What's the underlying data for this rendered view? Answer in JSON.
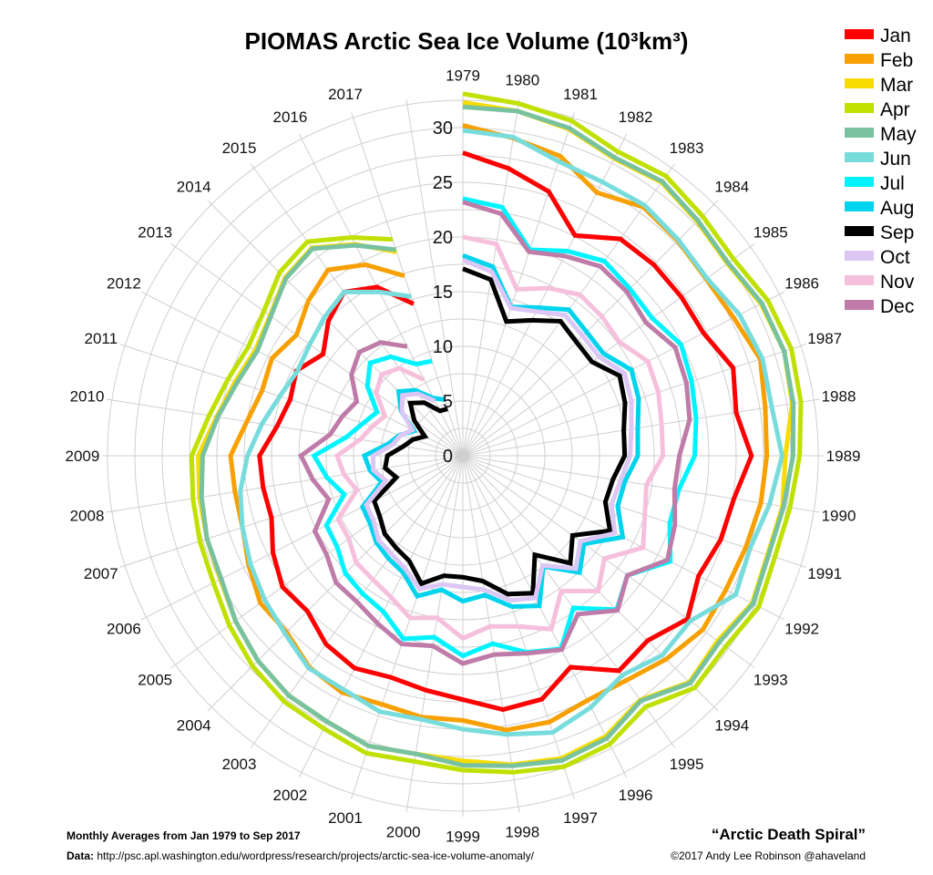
{
  "chart_data": {
    "type": "line",
    "subtype": "polar-spiral",
    "title": "PIOMAS Arctic Sea Ice Volume (10³km³)",
    "years": [
      "1979",
      "1980",
      "1981",
      "1982",
      "1983",
      "1984",
      "1985",
      "1986",
      "1987",
      "1988",
      "1989",
      "1990",
      "1991",
      "1992",
      "1993",
      "1994",
      "1995",
      "1996",
      "1997",
      "1998",
      "1999",
      "2000",
      "2001",
      "2002",
      "2003",
      "2004",
      "2005",
      "2006",
      "2007",
      "2008",
      "2009",
      "2010",
      "2011",
      "2012",
      "2013",
      "2014",
      "2015",
      "2016",
      "2017"
    ],
    "radial_ticks": [
      "0",
      "5",
      "10",
      "15",
      "20",
      "25",
      "30"
    ],
    "radial_range": [
      0,
      32.5
    ],
    "grid": true,
    "legend_position": "top-right",
    "series": [
      {
        "name": "Jan",
        "color": "#ff0000",
        "values": [
          27.7,
          26.6,
          25.4,
          22.6,
          24.5,
          24.7,
          24.7,
          24.7,
          26.0,
          25.3,
          26.4,
          25.1,
          24.8,
          24.2,
          25.4,
          23.9,
          24.3,
          21.7,
          23.4,
          23.5,
          22.3,
          21.7,
          21.3,
          21.8,
          21.3,
          20.1,
          20.4,
          19.5,
          18.4,
          18.5,
          18.6,
          17.2,
          16.6,
          17.1,
          15.8,
          17.4,
          18.5,
          17.3,
          14.6
        ]
      },
      {
        "name": "Feb",
        "color": "#f7a000",
        "values": [
          30.2,
          29.4,
          28.8,
          27.0,
          28.1,
          27.8,
          27.5,
          27.8,
          28.6,
          28.0,
          27.8,
          27.6,
          27.2,
          27.0,
          27.1,
          26.3,
          25.4,
          25.1,
          25.6,
          25.4,
          24.2,
          24.2,
          23.9,
          24.3,
          23.9,
          22.8,
          22.9,
          22.0,
          21.2,
          21.1,
          21.25,
          20.0,
          19.3,
          19.6,
          18.8,
          20.0,
          21.0,
          19.6,
          17.3
        ]
      },
      {
        "name": "Mar",
        "color": "#f8dc00",
        "values": [
          32.3,
          31.9,
          31.4,
          30.5,
          30.9,
          30.3,
          29.9,
          30.6,
          30.9,
          30.5,
          29.5,
          29.6,
          29.3,
          29.7,
          28.8,
          29.3,
          27.6,
          28.8,
          29.1,
          28.6,
          27.9,
          27.6,
          27.9,
          27.3,
          27.1,
          26.5,
          25.7,
          24.9,
          24.6,
          24.4,
          24.2,
          22.8,
          21.9,
          21.3,
          21.8,
          23.0,
          23.5,
          21.7,
          19.6
        ]
      },
      {
        "name": "Apr",
        "color": "#c0e000",
        "values": [
          33.1,
          32.6,
          32.2,
          31.2,
          31.6,
          31.0,
          30.6,
          31.3,
          31.6,
          31.3,
          30.8,
          30.3,
          30.0,
          30.4,
          29.7,
          30.0,
          28.4,
          29.6,
          29.9,
          29.3,
          28.75,
          28.3,
          28.6,
          28.0,
          27.8,
          27.2,
          26.4,
          25.6,
          25.3,
          25.0,
          24.8,
          23.5,
          22.6,
          22.0,
          22.5,
          23.7,
          24.2,
          22.4,
          20.8
        ]
      },
      {
        "name": "May",
        "color": "#78c2a0",
        "values": [
          31.9,
          31.9,
          31.5,
          30.6,
          31.0,
          30.4,
          30.0,
          30.7,
          30.9,
          30.6,
          30.2,
          29.7,
          29.4,
          29.8,
          29.0,
          29.4,
          27.7,
          29.0,
          29.3,
          28.7,
          28.3,
          27.6,
          27.9,
          27.3,
          27.1,
          26.5,
          25.7,
          24.8,
          24.6,
          24.2,
          23.8,
          22.7,
          21.7,
          21.1,
          21.7,
          22.9,
          23.4,
          21.6,
          19.8
        ]
      },
      {
        "name": "Jun",
        "color": "#78dcdc",
        "values": [
          29.75,
          29.5,
          28.3,
          28.1,
          28.3,
          27.9,
          27.6,
          28.4,
          28.8,
          28.6,
          29.2,
          28.4,
          27.6,
          28.0,
          25.7,
          25.8,
          24.8,
          25.8,
          26.6,
          25.8,
          25.0,
          24.4,
          24.6,
          24.0,
          24.0,
          23.0,
          22.4,
          21.8,
          21.2,
          20.6,
          19.7,
          18.6,
          17.6,
          17.0,
          17.3,
          17.9,
          18.5,
          16.8,
          15.3
        ]
      },
      {
        "name": "Jul",
        "color": "#00f4ff",
        "values": [
          23.5,
          23.0,
          19.8,
          21.0,
          22.0,
          21.6,
          21.4,
          22.4,
          22.0,
          21.6,
          21.2,
          20.0,
          19.9,
          21.3,
          18.6,
          19.9,
          17.2,
          19.8,
          18.9,
          17.4,
          18.3,
          16.8,
          17.6,
          16.0,
          15.6,
          15.2,
          14.2,
          14.0,
          11.4,
          12.6,
          13.6,
          10.8,
          9.6,
          8.8,
          10.8,
          12.0,
          11.2,
          9.4,
          9.1
        ]
      },
      {
        "name": "Aug",
        "color": "#00d4ec",
        "values": [
          18.3,
          17.5,
          14.3,
          15.2,
          16.5,
          16.0,
          15.9,
          17.3,
          16.9,
          16.2,
          16.0,
          15.0,
          14.9,
          16.4,
          13.7,
          15.1,
          12.5,
          15.4,
          14.5,
          12.9,
          13.3,
          12.4,
          13.5,
          12.0,
          11.6,
          11.2,
          10.5,
          10.3,
          7.8,
          8.6,
          9.0,
          6.9,
          6.1,
          5.0,
          7.0,
          8.3,
          7.4,
          5.9,
          5.4
        ]
      },
      {
        "name": "Sep",
        "color": "#000000",
        "values": [
          17.1,
          16.3,
          12.9,
          13.9,
          15.2,
          14.7,
          14.6,
          16.1,
          15.6,
          14.9,
          14.8,
          13.9,
          13.7,
          15.1,
          12.4,
          13.9,
          11.2,
          14.1,
          13.3,
          11.6,
          11.1,
          11.1,
          12.3,
          10.8,
          10.4,
          10.1,
          9.4,
          9.1,
          6.4,
          7.2,
          6.9,
          5.5,
          4.8,
          3.9,
          5.5,
          6.8,
          6.0,
          4.6,
          4.5
        ]
      },
      {
        "name": "Oct",
        "color": "#dcc6f4",
        "values": [
          17.9,
          17.0,
          14.2,
          14.8,
          15.9,
          15.5,
          15.4,
          16.6,
          16.2,
          15.6,
          15.3,
          14.6,
          14.3,
          15.6,
          13.3,
          14.6,
          12.4,
          14.6,
          13.9,
          12.4,
          12.0,
          11.9,
          12.8,
          11.6,
          11.1,
          10.9,
          10.1,
          9.9,
          7.4,
          8.3,
          8.2,
          6.5,
          6.0,
          5.2,
          6.9,
          7.8,
          7.0,
          5.6
        ]
      },
      {
        "name": "Nov",
        "color": "#f6c0dc",
        "values": [
          20.0,
          19.6,
          16.0,
          17.2,
          18.2,
          18.0,
          17.7,
          19.0,
          18.8,
          18.4,
          18.3,
          17.0,
          17.5,
          18.5,
          16.0,
          17.5,
          15.3,
          17.8,
          16.4,
          15.8,
          16.7,
          15.0,
          15.6,
          14.5,
          14.0,
          13.8,
          12.9,
          12.8,
          10.2,
          11.0,
          11.5,
          9.5,
          8.7,
          8.0,
          9.8,
          10.5,
          9.9,
          7.8
        ]
      },
      {
        "name": "Dec",
        "color": "#c07ca8",
        "values": [
          23.2,
          22.4,
          19.6,
          20.5,
          21.4,
          21.2,
          20.7,
          21.8,
          21.5,
          21.0,
          19.8,
          19.6,
          20.4,
          21.0,
          18.6,
          20.0,
          17.9,
          19.9,
          19.0,
          18.4,
          19.0,
          17.6,
          18.1,
          17.2,
          16.5,
          16.4,
          15.4,
          15.2,
          12.9,
          13.9,
          14.8,
          12.3,
          11.6,
          10.9,
          12.6,
          13.4,
          12.8,
          11.2
        ]
      }
    ]
  },
  "footer": {
    "range_note": "Monthly Averages from Jan 1979 to Sep 2017",
    "data_label": "Data:",
    "data_url": "http://psc.apl.washington.edu/wordpress/research/projects/arctic-sea-ice-volume-anomaly/",
    "credit_title": "“Arctic Death Spiral”",
    "credit": "©2017 Andy Lee Robinson @ahaveland"
  }
}
